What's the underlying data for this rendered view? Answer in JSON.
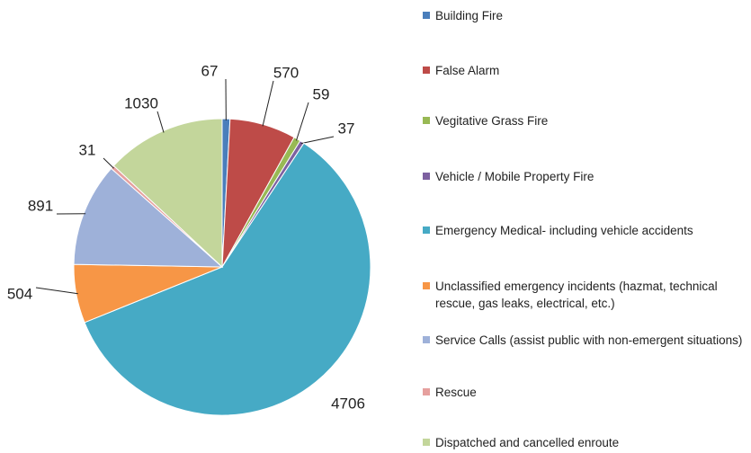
{
  "chart_data": {
    "type": "pie",
    "categories": [
      "Building Fire",
      "False Alarm",
      "Vegitative Grass Fire",
      "Vehicle / Mobile Property Fire",
      "Emergency Medical- including vehicle accidents",
      "Unclassified emergency incidents (hazmat, technical rescue, gas leaks, electrical, etc.)",
      "Service Calls (assist public with non-emergent situations)",
      "Rescue",
      "Dispatched and cancelled enroute"
    ],
    "values": [
      67,
      570,
      59,
      37,
      4706,
      504,
      891,
      31,
      1030
    ],
    "colors": [
      "#4a7ebb",
      "#be4b48",
      "#98b954",
      "#7d60a0",
      "#46aac5",
      "#f79646",
      "#9eb1d9",
      "#e6a09e",
      "#c3d69b"
    ],
    "legend": "right"
  }
}
